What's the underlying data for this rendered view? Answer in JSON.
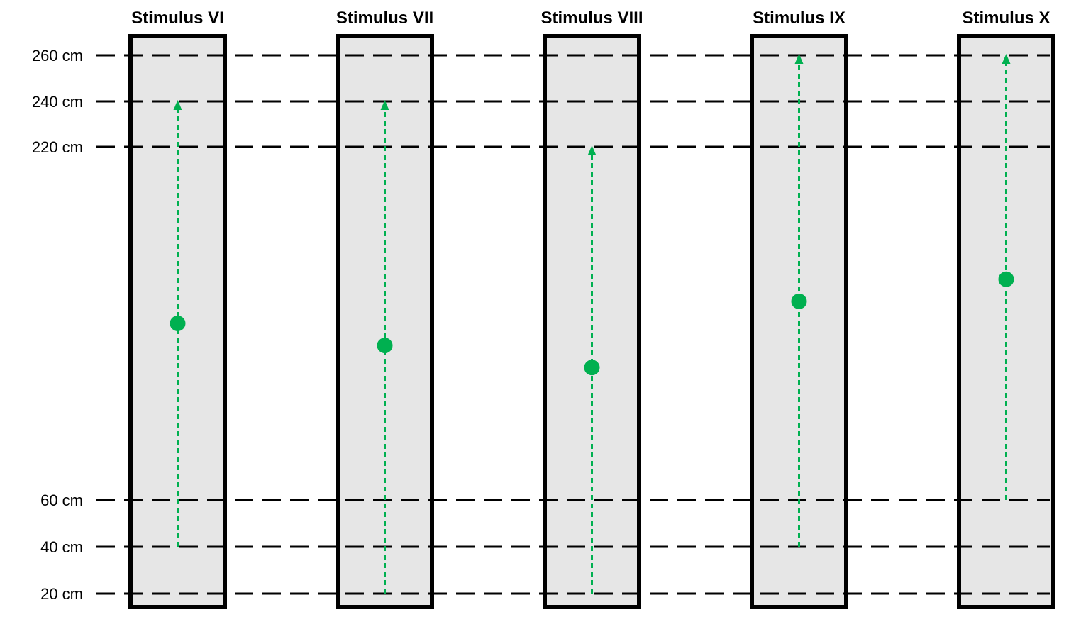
{
  "colors": {
    "panel_fill": "#e6e6e6",
    "panel_stroke": "#000000",
    "marker": "#00b050",
    "guide_line": "#000000"
  },
  "levels": [
    {
      "value": 260,
      "label": "260 cm"
    },
    {
      "value": 240,
      "label": "240 cm"
    },
    {
      "value": 220,
      "label": "220 cm"
    },
    {
      "value": 60,
      "label": "60 cm"
    },
    {
      "value": 40,
      "label": "40 cm"
    },
    {
      "value": 20,
      "label": "20 cm"
    }
  ],
  "stimuli": [
    {
      "title": "Stimulus VI",
      "from_cm": 40,
      "to_cm": 240
    },
    {
      "title": "Stimulus VII",
      "from_cm": 20,
      "to_cm": 240
    },
    {
      "title": "Stimulus VIII",
      "from_cm": 20,
      "to_cm": 220
    },
    {
      "title": "Stimulus IX",
      "from_cm": 40,
      "to_cm": 260
    },
    {
      "title": "Stimulus X",
      "from_cm": 60,
      "to_cm": 260
    }
  ]
}
